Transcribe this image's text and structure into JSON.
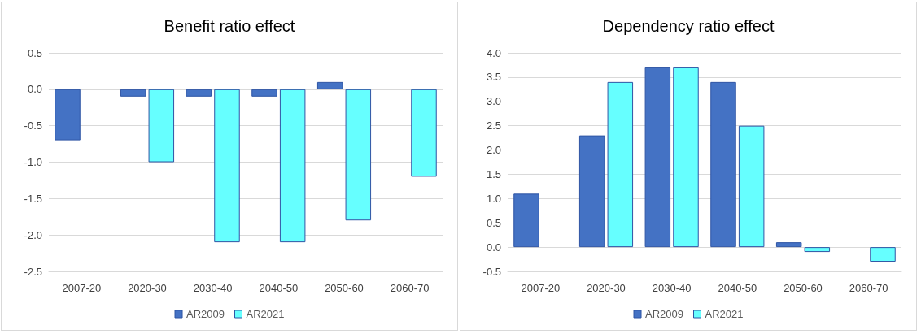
{
  "chart_data": [
    {
      "type": "bar",
      "title": "Benefit ratio effect",
      "categories": [
        "2007-20",
        "2020-30",
        "2030-40",
        "2040-50",
        "2050-60",
        "2060-70"
      ],
      "series": [
        {
          "name": "AR2009",
          "color": "#4472c4",
          "values": [
            -0.7,
            -0.1,
            -0.1,
            -0.1,
            0.1,
            null
          ]
        },
        {
          "name": "AR2021",
          "color": "#66ffff",
          "values": [
            null,
            -1.0,
            -2.1,
            -2.1,
            -1.8,
            -1.2
          ]
        }
      ],
      "ylim": [
        -2.5,
        0.5
      ],
      "yticks": [
        {
          "value": -2.5,
          "label": "-2.5"
        },
        {
          "value": -2,
          "label": "-2.0"
        },
        {
          "value": -1.5,
          "label": "-1.5"
        },
        {
          "value": -1,
          "label": "-1.0"
        },
        {
          "value": -0.5,
          "label": "-0.5"
        },
        {
          "value": 0,
          "label": "0.0"
        },
        {
          "value": 0.5,
          "label": "0.5"
        }
      ],
      "grid": "y",
      "legend": "bottom"
    },
    {
      "type": "bar",
      "title": "Dependency ratio effect",
      "categories": [
        "2007-20",
        "2020-30",
        "2030-40",
        "2040-50",
        "2050-60",
        "2060-70"
      ],
      "series": [
        {
          "name": "AR2009",
          "color": "#4472c4",
          "values": [
            1.1,
            2.3,
            3.7,
            3.4,
            0.1,
            null
          ]
        },
        {
          "name": "AR2021",
          "color": "#66ffff",
          "values": [
            null,
            3.4,
            3.7,
            2.5,
            -0.1,
            -0.3
          ]
        }
      ],
      "ylim": [
        -0.5,
        4.0
      ],
      "yticks": [
        {
          "value": -0.5,
          "label": "-0.5"
        },
        {
          "value": 0,
          "label": "0.0"
        },
        {
          "value": 0.5,
          "label": "0.5"
        },
        {
          "value": 1,
          "label": "1.0"
        },
        {
          "value": 1.5,
          "label": "1.5"
        },
        {
          "value": 2,
          "label": "2.0"
        },
        {
          "value": 2.5,
          "label": "2.5"
        },
        {
          "value": 3,
          "label": "3.0"
        },
        {
          "value": 3.5,
          "label": "3.5"
        },
        {
          "value": 4,
          "label": "4.0"
        }
      ],
      "grid": "y",
      "legend": "bottom"
    }
  ]
}
